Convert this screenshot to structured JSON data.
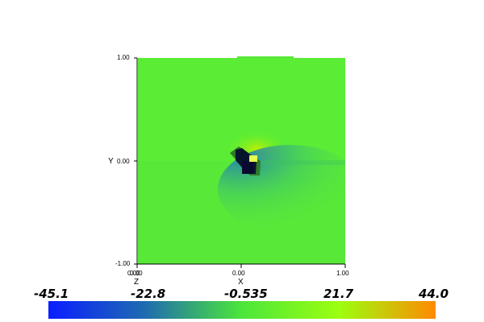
{
  "chart_data": {
    "type": "heatmap",
    "title": "",
    "xlabel": "X",
    "ylabel": "Y",
    "zlabel": "Z",
    "xlim": [
      -1.0,
      1.0
    ],
    "ylim": [
      -1.0,
      1.0
    ],
    "x_ticks": [
      "",
      "0.00",
      "1.00"
    ],
    "z_ticks": [
      "0.00",
      "0.00"
    ],
    "y_ticks": [
      "1.00",
      "0.00",
      "-1.00"
    ],
    "colorbar": {
      "min": -45.1,
      "max": 44.0,
      "tick_labels": [
        "-45.1",
        "-22.8",
        "-0.535",
        "21.7",
        "44.0"
      ],
      "colors": [
        "#0a1eff",
        "#1e6bb0",
        "#4ce63a",
        "#9cff10",
        "#ff8a00"
      ]
    },
    "background_value": -0.535,
    "features": [
      {
        "name": "dark-core",
        "x": 0.08,
        "y": 0.0,
        "value": -45.1
      },
      {
        "name": "bright-lobe",
        "x": 0.12,
        "y": 0.06,
        "value": 21.7
      },
      {
        "name": "blue-wake",
        "x": 0.3,
        "y": -0.2,
        "value": -22.8
      }
    ]
  }
}
